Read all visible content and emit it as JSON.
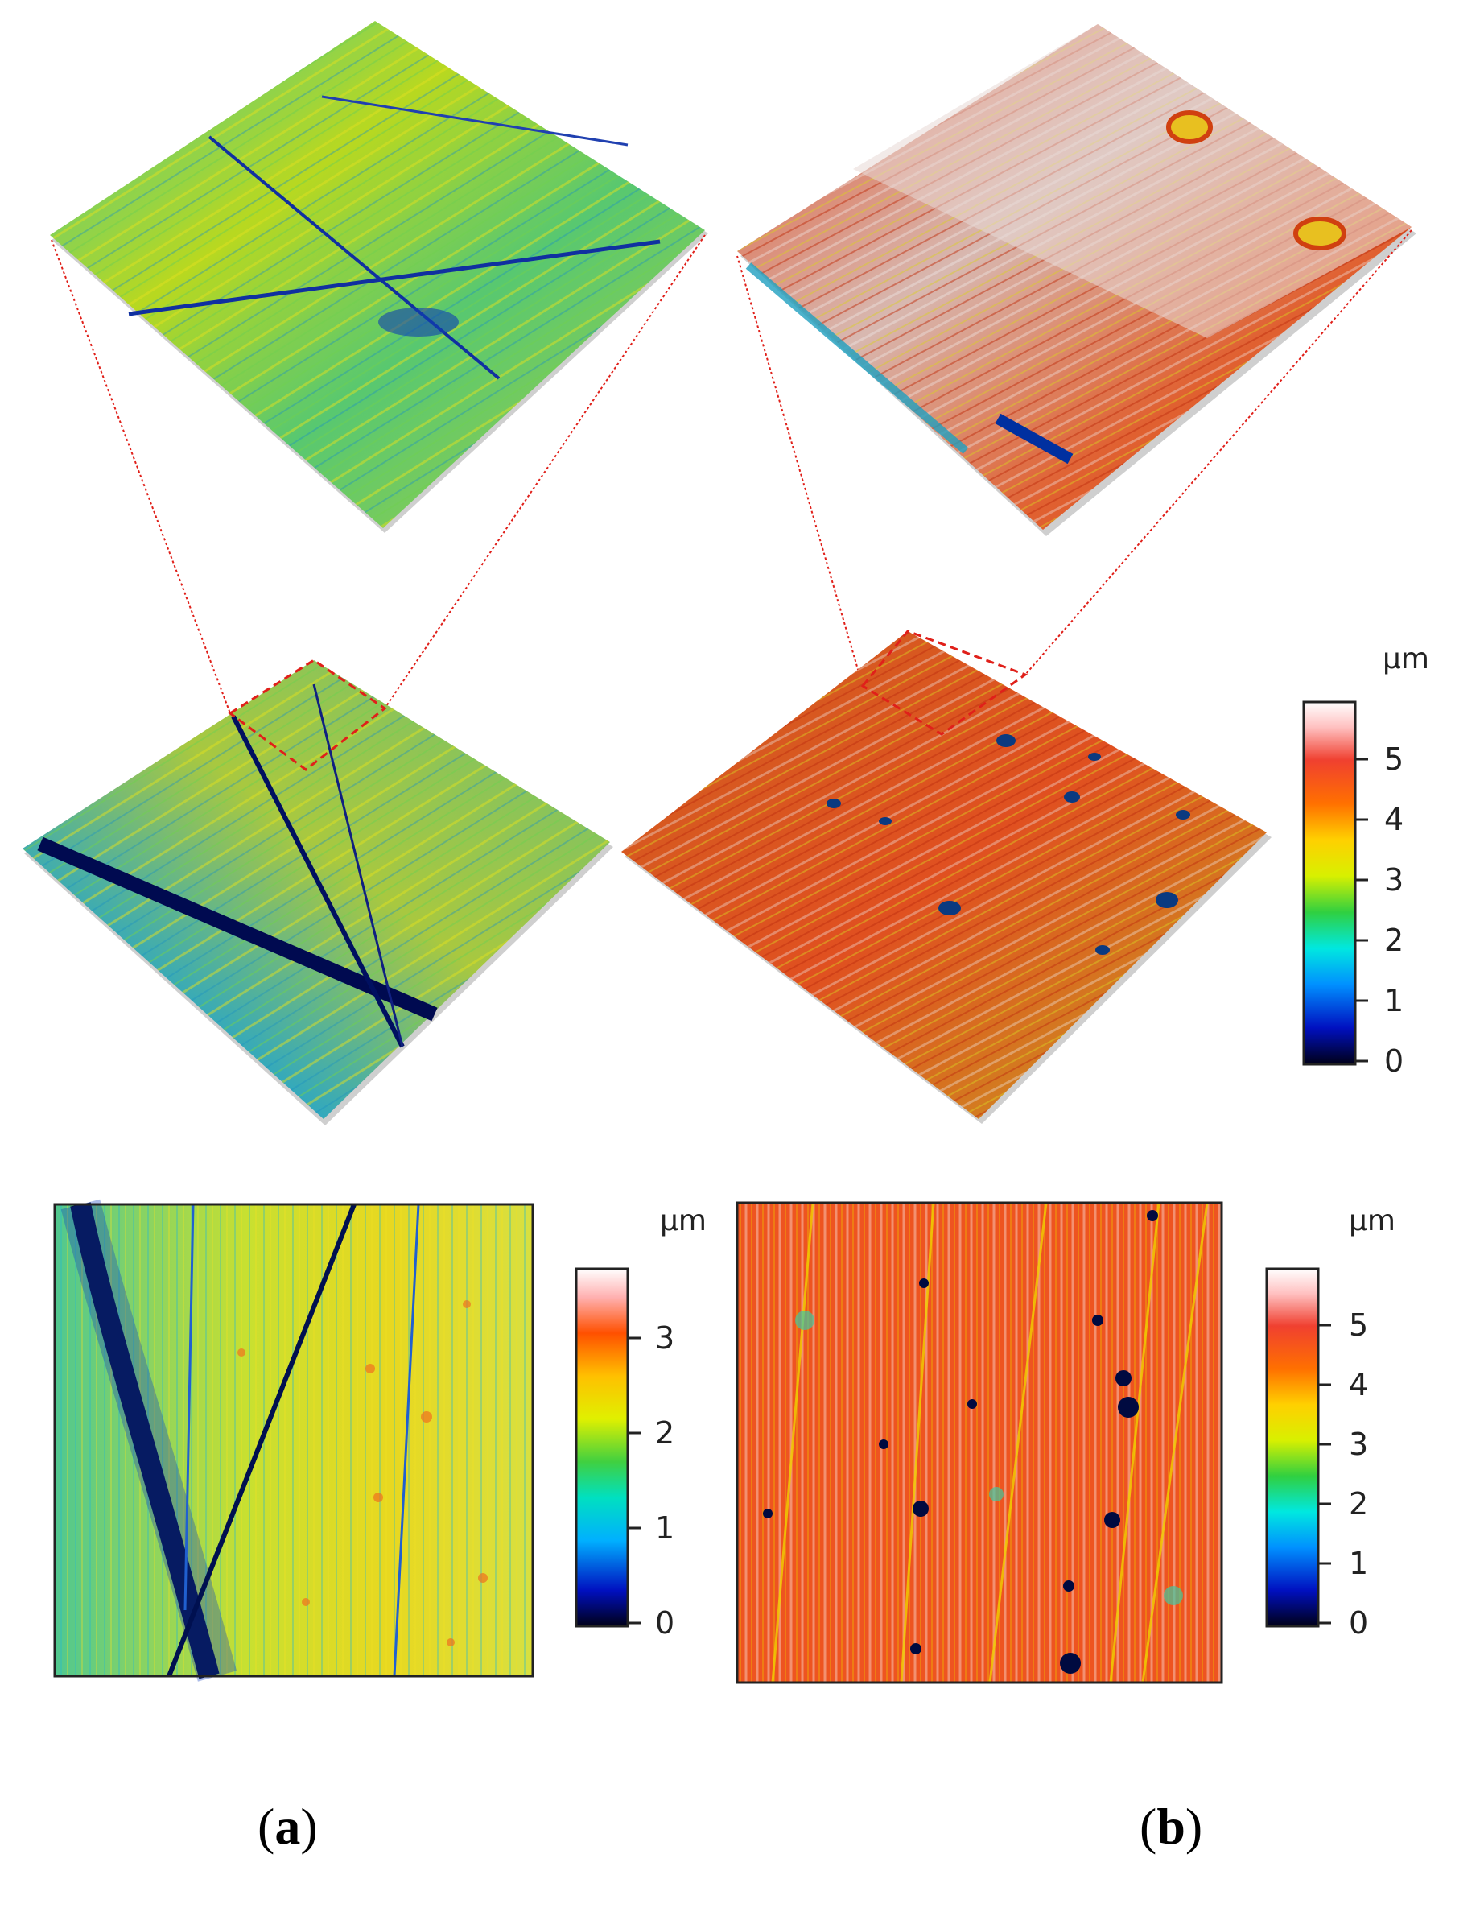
{
  "panels": [
    {
      "id": "a",
      "label": "a"
    },
    {
      "id": "b",
      "label": "b"
    }
  ],
  "colorbars": [
    {
      "id": "colorbar-3d",
      "unit": "μm",
      "ticks": [
        "0",
        "1",
        "2",
        "3",
        "4",
        "5"
      ],
      "max": 6
    },
    {
      "id": "colorbar-a",
      "unit": "μm",
      "ticks": [
        "0",
        "1",
        "2",
        "3"
      ],
      "max": 3.7
    },
    {
      "id": "colorbar-b",
      "unit": "μm",
      "ticks": [
        "0",
        "1",
        "2",
        "3",
        "4",
        "5"
      ],
      "max": 6
    }
  ],
  "colors": {
    "connector": "#e0201a",
    "jet": [
      "#000020",
      "#0000a0",
      "#0060ff",
      "#00e0ff",
      "#40e040",
      "#d0f000",
      "#ffd000",
      "#ff6000",
      "#f04020",
      "#ffe0e0",
      "#ffffff"
    ]
  }
}
